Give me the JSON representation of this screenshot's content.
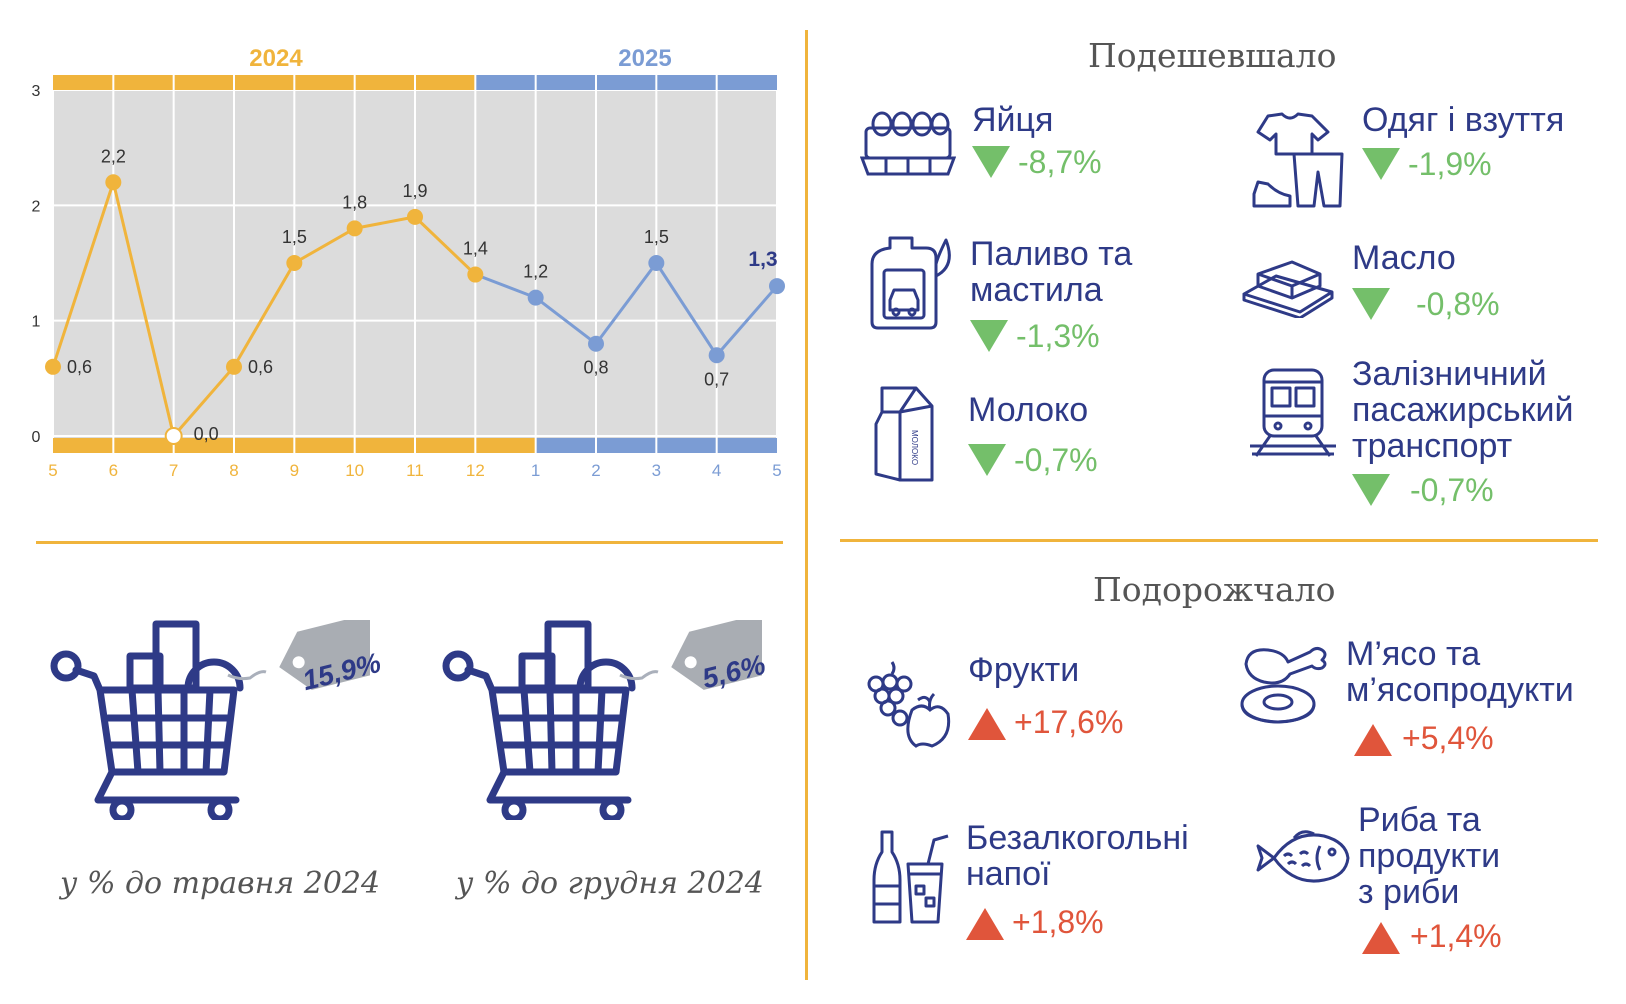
{
  "chart_data": {
    "type": "line",
    "years": [
      "2024",
      "2025"
    ],
    "x": [
      "5",
      "6",
      "7",
      "8",
      "9",
      "10",
      "11",
      "12",
      "1",
      "2",
      "3",
      "4",
      "5"
    ],
    "values": [
      0.6,
      2.2,
      0.0,
      0.6,
      1.5,
      1.8,
      1.9,
      1.4,
      1.2,
      0.8,
      1.5,
      0.7,
      1.3
    ],
    "value_labels": [
      "0,6",
      "2,2",
      "0,0",
      "0,6",
      "1,5",
      "1,8",
      "1,9",
      "1,4",
      "1,2",
      "0,8",
      "1,5",
      "0,7",
      "1,3"
    ],
    "year_of_point": [
      0,
      0,
      0,
      0,
      0,
      0,
      0,
      0,
      1,
      1,
      1,
      1,
      1
    ],
    "yticks": [
      "0",
      "1",
      "2",
      "3"
    ],
    "ylim": [
      0,
      3
    ],
    "grid": true,
    "colors": {
      "2024": "#f0b43c",
      "2025": "#7b9cd4",
      "plot_bg": "#dcdcdc"
    }
  },
  "cheaper": {
    "title": "Подешевшало",
    "items": [
      {
        "name": "Яйця",
        "value": "-8,7%",
        "icon": "eggs-icon"
      },
      {
        "name": "Одяг і взуття",
        "value": "-1,9%",
        "icon": "clothes-icon"
      },
      {
        "name": "Паливо та\nмастила",
        "value": "-1,3%",
        "icon": "fuel-icon"
      },
      {
        "name": "Масло",
        "value": "-0,8%",
        "icon": "butter-icon"
      },
      {
        "name": "Молоко",
        "value": "-0,7%",
        "icon": "milk-icon"
      },
      {
        "name": "Залізничний\nпасажирський\nтранспорт",
        "value": "-0,7%",
        "icon": "train-icon"
      }
    ]
  },
  "pricier": {
    "title": "Подорожчало",
    "items": [
      {
        "name": "Фрукти",
        "value": "+17,6%",
        "icon": "fruits-icon"
      },
      {
        "name": "М’ясо та\nм’ясопродукти",
        "value": "+5,4%",
        "icon": "meat-icon"
      },
      {
        "name": "Безалкогольні\nнапої",
        "value": "+1,8%",
        "icon": "drinks-icon"
      },
      {
        "name": "Риба та\nпродукти\nз риби",
        "value": "+1,4%",
        "icon": "fish-icon"
      }
    ]
  },
  "carts": [
    {
      "tag": "15,9%",
      "caption": "у % до травня 2024"
    },
    {
      "tag": "5,6%",
      "caption": "у % до грудня 2024"
    }
  ],
  "milk_carton_label": "МОЛОКО"
}
